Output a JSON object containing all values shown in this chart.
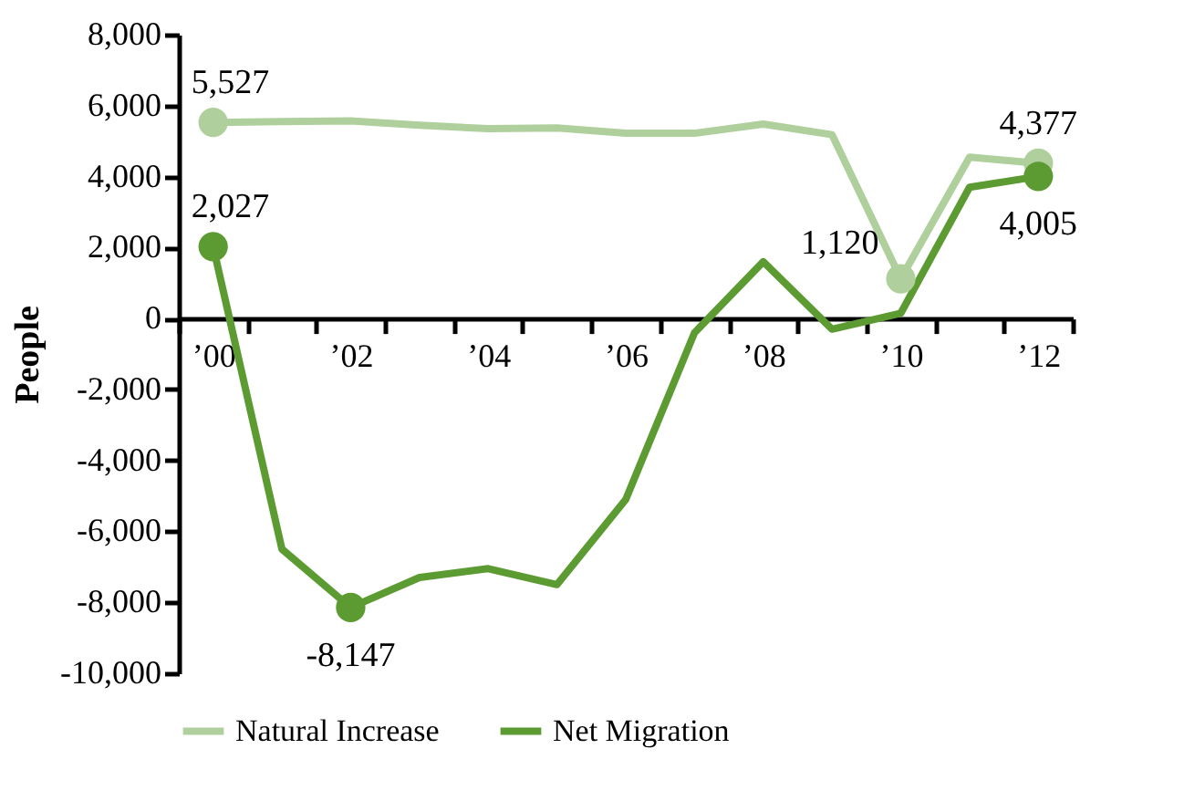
{
  "chart_data": {
    "type": "line",
    "ylabel": "People",
    "categories": [
      "’00",
      null,
      "’02",
      null,
      "’04",
      null,
      "’06",
      null,
      "’08",
      null,
      "’10",
      null,
      "’12"
    ],
    "series": [
      {
        "name": "Natural Increase",
        "color": "#afd09c",
        "values": [
          5527,
          5550,
          5570,
          5450,
          5350,
          5370,
          5220,
          5220,
          5480,
          5180,
          1120,
          4550,
          4377
        ],
        "value_labels": [
          "5,527",
          null,
          null,
          null,
          null,
          null,
          null,
          null,
          null,
          null,
          "1,120",
          null,
          "4,377"
        ]
      },
      {
        "name": "Net Migration",
        "color": "#5c9b32",
        "values": [
          2027,
          -6500,
          -8147,
          -7300,
          -7050,
          -7500,
          -5100,
          -400,
          1600,
          -300,
          150,
          3700,
          4005
        ],
        "value_labels": [
          "2,027",
          null,
          "-8,147",
          null,
          null,
          null,
          null,
          null,
          null,
          null,
          null,
          null,
          "4,005"
        ]
      }
    ],
    "ylim": [
      -10000,
      8000
    ],
    "yticks": [
      {
        "value": -10000,
        "label": "-10,000"
      },
      {
        "value": -8000,
        "label": "-8,000"
      },
      {
        "value": -6000,
        "label": "-6,000"
      },
      {
        "value": -4000,
        "label": "-4,000"
      },
      {
        "value": -2000,
        "label": "-2,000"
      },
      0,
      {
        "value": 2000,
        "label": "2,000"
      },
      {
        "value": 4000,
        "label": "4,000"
      },
      {
        "value": 6000,
        "label": "6,000"
      },
      {
        "value": 8000,
        "label": "8,000"
      }
    ],
    "grid": false,
    "legend": "bottom",
    "line_style": "solid"
  }
}
